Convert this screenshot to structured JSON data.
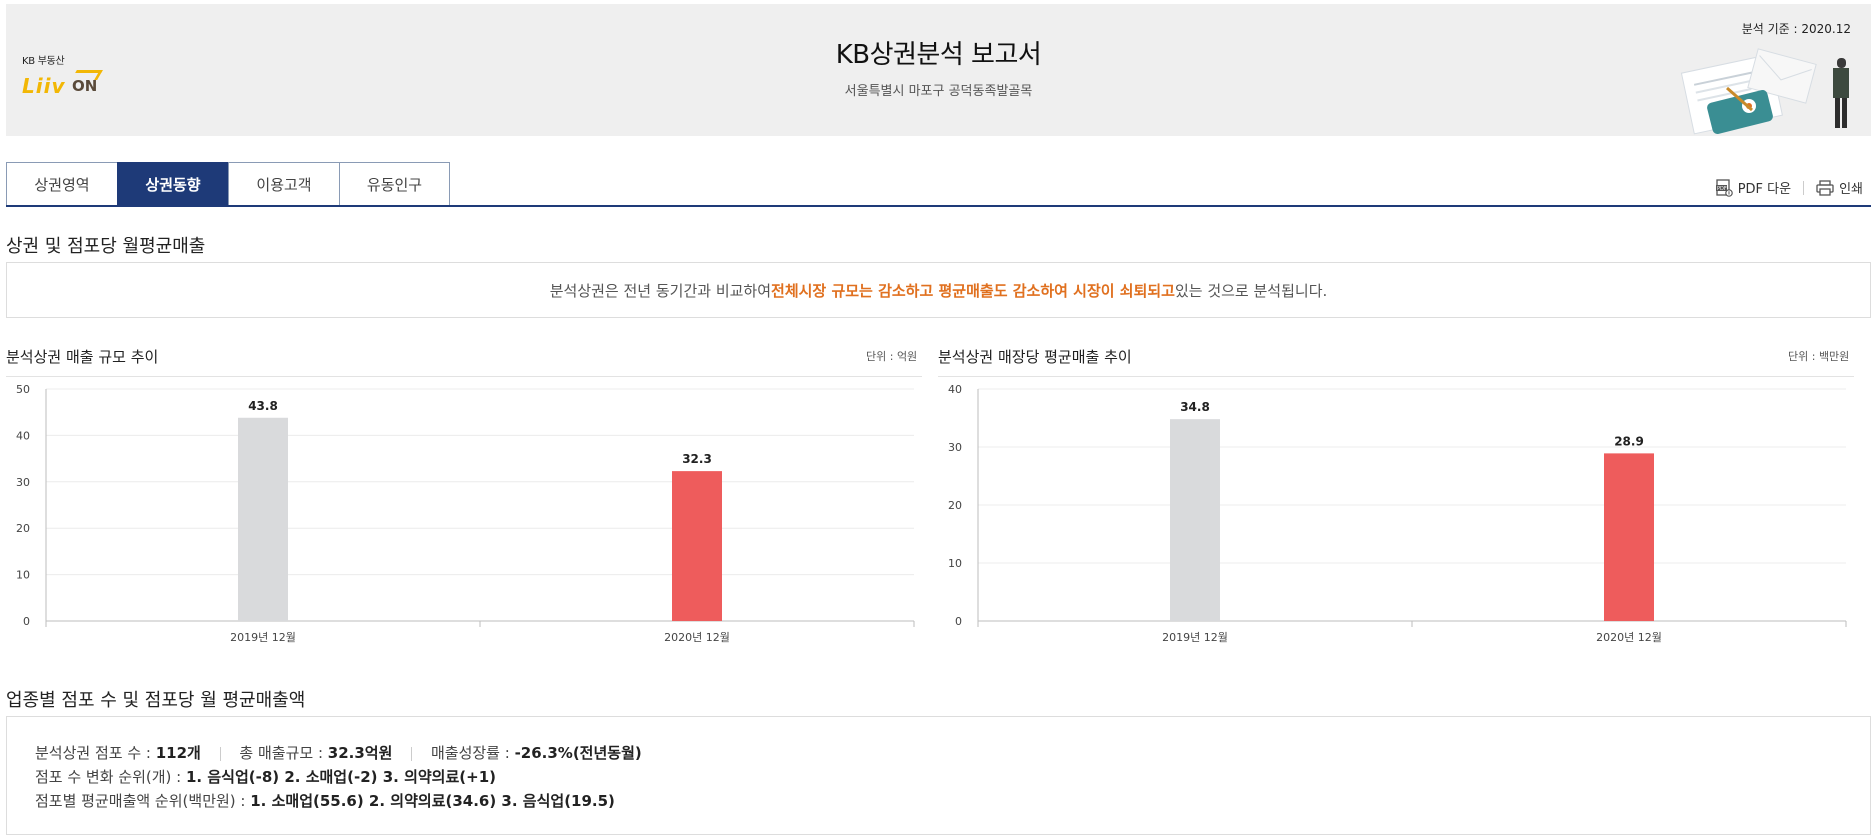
{
  "header": {
    "logo_kb": "KB 부동산",
    "logo_liiv": "Liiv",
    "logo_on": "ON",
    "title": "KB상권분석 보고서",
    "subtitle": "서울특별시 마포구 공덕동족발골목",
    "base_date": "분석 기준 : 2020.12"
  },
  "tabs": [
    {
      "label": "상권영역",
      "active": false
    },
    {
      "label": "상권동향",
      "active": true
    },
    {
      "label": "이용고객",
      "active": false
    },
    {
      "label": "유동인구",
      "active": false
    }
  ],
  "tools": {
    "pdf_label": "PDF 다운",
    "print_label": "인쇄"
  },
  "section1": {
    "title": "상권 및 점포당 월평균매출",
    "summary_pre": "분석상권은 전년 동기간과 비교하여 ",
    "summary_highlight": "전체시장 규모는 감소하고 평균매출도 감소하여 시장이 쇠퇴되고",
    "summary_post": " 있는 것으로 분석됩니다."
  },
  "colors": {
    "accent": "#1e3a78",
    "highlight": "#e0701f",
    "bar_prev": "#d9dadc",
    "bar_curr": "#ee5c5c"
  },
  "chart_data": [
    {
      "type": "bar",
      "title": "분석상권 매출 규모 추이",
      "unit": "단위 : 억원",
      "categories": [
        "2019년 12월",
        "2020년 12월"
      ],
      "values": [
        43.8,
        32.3
      ],
      "ylim": [
        0,
        50
      ],
      "yticks": [
        0,
        10,
        20,
        30,
        40,
        50
      ],
      "grid": true
    },
    {
      "type": "bar",
      "title": "분석상권 매장당 평균매출 추이",
      "unit": "단위 : 백만원",
      "categories": [
        "2019년 12월",
        "2020년 12월"
      ],
      "values": [
        34.8,
        28.9
      ],
      "ylim": [
        0,
        40
      ],
      "yticks": [
        0,
        10,
        20,
        30,
        40
      ],
      "grid": true
    }
  ],
  "section2": {
    "title": "업종별 점포 수 및 점포당 월 평균매출액",
    "store_count_label": "분석상권 점포 수 : ",
    "store_count_value": "112개",
    "sales_scale_label": "총 매출규모 : ",
    "sales_scale_value": "32.3억원",
    "growth_label": "매출성장률 : ",
    "growth_value": "-26.3%(전년동월)",
    "rank_count_label": "점포 수 변화 순위(개) : ",
    "rank_count_value": "1. 음식업(-8) 2. 소매업(-2) 3. 의약의료(+1)",
    "rank_sales_label": "점포별 평균매출액 순위(백만원) : ",
    "rank_sales_value": "1. 소매업(55.6) 2. 의약의료(34.6) 3. 음식업(19.5)"
  }
}
